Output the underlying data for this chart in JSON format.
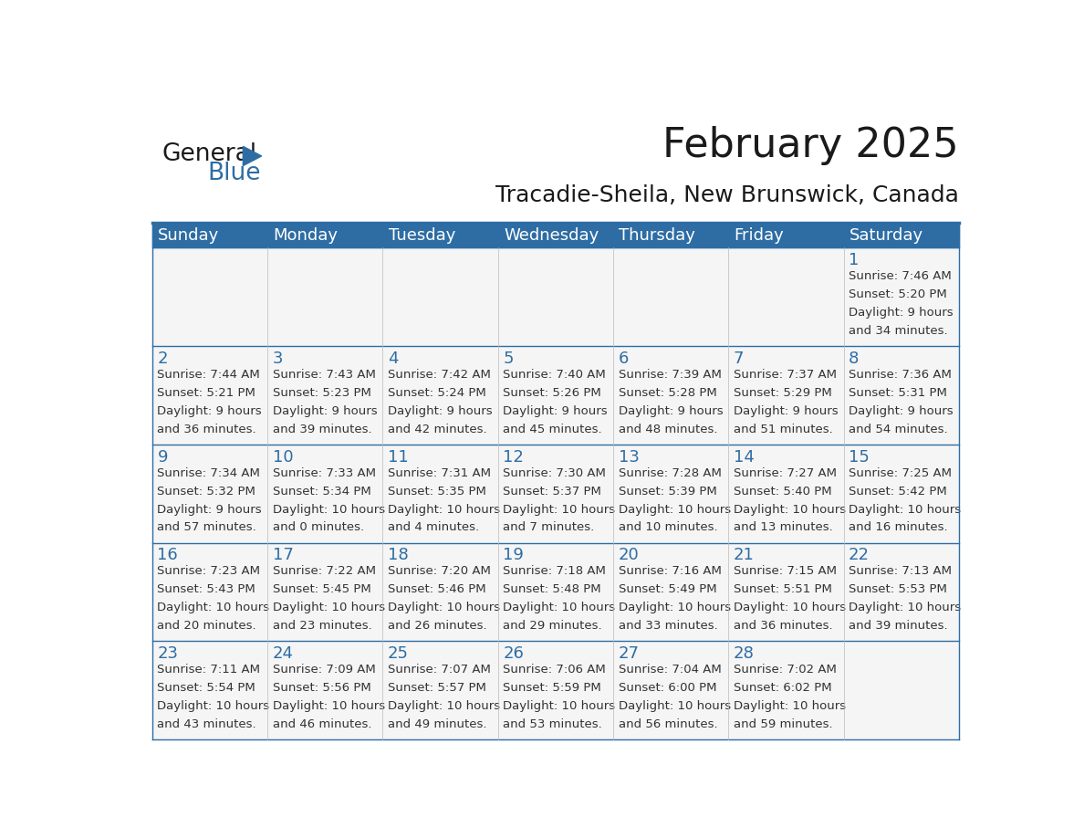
{
  "title": "February 2025",
  "subtitle": "Tracadie-Sheila, New Brunswick, Canada",
  "header_bg": "#2E6DA4",
  "header_text": "#FFFFFF",
  "cell_bg": "#F5F5F5",
  "border_color": "#2E6DA4",
  "text_color": "#333333",
  "day_headers": [
    "Sunday",
    "Monday",
    "Tuesday",
    "Wednesday",
    "Thursday",
    "Friday",
    "Saturday"
  ],
  "days_data": [
    {
      "day": 1,
      "col": 6,
      "row": 0,
      "sunrise": "7:46 AM",
      "sunset": "5:20 PM",
      "daylight": "9 hours and 34 minutes."
    },
    {
      "day": 2,
      "col": 0,
      "row": 1,
      "sunrise": "7:44 AM",
      "sunset": "5:21 PM",
      "daylight": "9 hours and 36 minutes."
    },
    {
      "day": 3,
      "col": 1,
      "row": 1,
      "sunrise": "7:43 AM",
      "sunset": "5:23 PM",
      "daylight": "9 hours and 39 minutes."
    },
    {
      "day": 4,
      "col": 2,
      "row": 1,
      "sunrise": "7:42 AM",
      "sunset": "5:24 PM",
      "daylight": "9 hours and 42 minutes."
    },
    {
      "day": 5,
      "col": 3,
      "row": 1,
      "sunrise": "7:40 AM",
      "sunset": "5:26 PM",
      "daylight": "9 hours and 45 minutes."
    },
    {
      "day": 6,
      "col": 4,
      "row": 1,
      "sunrise": "7:39 AM",
      "sunset": "5:28 PM",
      "daylight": "9 hours and 48 minutes."
    },
    {
      "day": 7,
      "col": 5,
      "row": 1,
      "sunrise": "7:37 AM",
      "sunset": "5:29 PM",
      "daylight": "9 hours and 51 minutes."
    },
    {
      "day": 8,
      "col": 6,
      "row": 1,
      "sunrise": "7:36 AM",
      "sunset": "5:31 PM",
      "daylight": "9 hours and 54 minutes."
    },
    {
      "day": 9,
      "col": 0,
      "row": 2,
      "sunrise": "7:34 AM",
      "sunset": "5:32 PM",
      "daylight": "9 hours and 57 minutes."
    },
    {
      "day": 10,
      "col": 1,
      "row": 2,
      "sunrise": "7:33 AM",
      "sunset": "5:34 PM",
      "daylight": "10 hours and 0 minutes."
    },
    {
      "day": 11,
      "col": 2,
      "row": 2,
      "sunrise": "7:31 AM",
      "sunset": "5:35 PM",
      "daylight": "10 hours and 4 minutes."
    },
    {
      "day": 12,
      "col": 3,
      "row": 2,
      "sunrise": "7:30 AM",
      "sunset": "5:37 PM",
      "daylight": "10 hours and 7 minutes."
    },
    {
      "day": 13,
      "col": 4,
      "row": 2,
      "sunrise": "7:28 AM",
      "sunset": "5:39 PM",
      "daylight": "10 hours and 10 minutes."
    },
    {
      "day": 14,
      "col": 5,
      "row": 2,
      "sunrise": "7:27 AM",
      "sunset": "5:40 PM",
      "daylight": "10 hours and 13 minutes."
    },
    {
      "day": 15,
      "col": 6,
      "row": 2,
      "sunrise": "7:25 AM",
      "sunset": "5:42 PM",
      "daylight": "10 hours and 16 minutes."
    },
    {
      "day": 16,
      "col": 0,
      "row": 3,
      "sunrise": "7:23 AM",
      "sunset": "5:43 PM",
      "daylight": "10 hours and 20 minutes."
    },
    {
      "day": 17,
      "col": 1,
      "row": 3,
      "sunrise": "7:22 AM",
      "sunset": "5:45 PM",
      "daylight": "10 hours and 23 minutes."
    },
    {
      "day": 18,
      "col": 2,
      "row": 3,
      "sunrise": "7:20 AM",
      "sunset": "5:46 PM",
      "daylight": "10 hours and 26 minutes."
    },
    {
      "day": 19,
      "col": 3,
      "row": 3,
      "sunrise": "7:18 AM",
      "sunset": "5:48 PM",
      "daylight": "10 hours and 29 minutes."
    },
    {
      "day": 20,
      "col": 4,
      "row": 3,
      "sunrise": "7:16 AM",
      "sunset": "5:49 PM",
      "daylight": "10 hours and 33 minutes."
    },
    {
      "day": 21,
      "col": 5,
      "row": 3,
      "sunrise": "7:15 AM",
      "sunset": "5:51 PM",
      "daylight": "10 hours and 36 minutes."
    },
    {
      "day": 22,
      "col": 6,
      "row": 3,
      "sunrise": "7:13 AM",
      "sunset": "5:53 PM",
      "daylight": "10 hours and 39 minutes."
    },
    {
      "day": 23,
      "col": 0,
      "row": 4,
      "sunrise": "7:11 AM",
      "sunset": "5:54 PM",
      "daylight": "10 hours and 43 minutes."
    },
    {
      "day": 24,
      "col": 1,
      "row": 4,
      "sunrise": "7:09 AM",
      "sunset": "5:56 PM",
      "daylight": "10 hours and 46 minutes."
    },
    {
      "day": 25,
      "col": 2,
      "row": 4,
      "sunrise": "7:07 AM",
      "sunset": "5:57 PM",
      "daylight": "10 hours and 49 minutes."
    },
    {
      "day": 26,
      "col": 3,
      "row": 4,
      "sunrise": "7:06 AM",
      "sunset": "5:59 PM",
      "daylight": "10 hours and 53 minutes."
    },
    {
      "day": 27,
      "col": 4,
      "row": 4,
      "sunrise": "7:04 AM",
      "sunset": "6:00 PM",
      "daylight": "10 hours and 56 minutes."
    },
    {
      "day": 28,
      "col": 5,
      "row": 4,
      "sunrise": "7:02 AM",
      "sunset": "6:02 PM",
      "daylight": "10 hours and 59 minutes."
    }
  ],
  "num_rows": 5,
  "num_cols": 7,
  "logo_color_general": "#1a1a1a",
  "logo_color_blue": "#2E6DA4",
  "logo_triangle_color": "#2E6DA4",
  "title_fontsize": 32,
  "subtitle_fontsize": 18,
  "header_fontsize": 13,
  "day_num_fontsize": 13,
  "cell_text_fontsize": 9.5
}
